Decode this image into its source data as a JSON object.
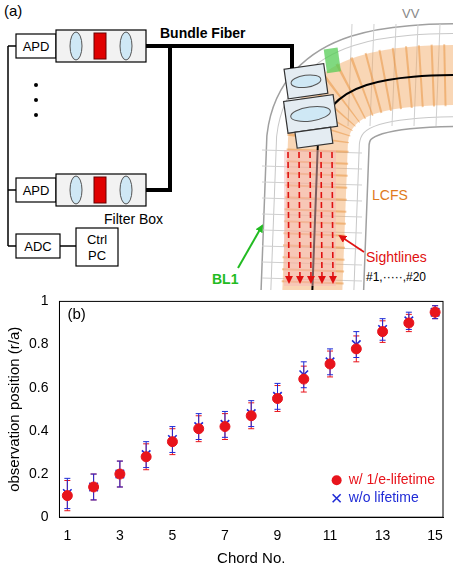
{
  "diagram": {
    "label": "(a)",
    "apd": "APD",
    "bundle_fiber": "Bundle Fiber",
    "filter_box": "Filter Box",
    "adc": "ADC",
    "ctrl_pc": [
      "Ctrl",
      "PC"
    ],
    "vv": "VV",
    "lcfs": "LCFS",
    "sightlines": "Sightlines",
    "sightline_numbers": "#1,·····,#20",
    "bl1": "BL1"
  },
  "chart_data": {
    "type": "scatter",
    "annotations": [
      "(b)"
    ],
    "x_label": "Chord No.",
    "y_label": "observation position (r/a)",
    "x": [
      1,
      2,
      3,
      4,
      5,
      6,
      7,
      8,
      9,
      10,
      11,
      12,
      13,
      14,
      15
    ],
    "xlim": [
      0.7,
      15.3
    ],
    "xticks": [
      1,
      3,
      5,
      7,
      9,
      11,
      13,
      15
    ],
    "ylim": [
      0,
      1
    ],
    "yticks": [
      0,
      0.2,
      0.4,
      0.6,
      0.8,
      1
    ],
    "grid": false,
    "legend": "bottom-right",
    "series": [
      {
        "name": "w/ 1/e-lifetime",
        "color": "#e8141c",
        "marker": "circle",
        "values": [
          0.1,
          0.14,
          0.2,
          0.28,
          0.35,
          0.41,
          0.42,
          0.47,
          0.55,
          0.64,
          0.71,
          0.78,
          0.86,
          0.9,
          0.95
        ],
        "error": [
          0.07,
          0.06,
          0.06,
          0.06,
          0.06,
          0.06,
          0.06,
          0.06,
          0.06,
          0.06,
          0.06,
          0.06,
          0.05,
          0.04,
          0.03
        ]
      },
      {
        "name": "w/o lifetime",
        "color": "#1f2bd6",
        "marker": "x",
        "values": [
          0.11,
          0.14,
          0.2,
          0.29,
          0.36,
          0.42,
          0.43,
          0.48,
          0.56,
          0.66,
          0.72,
          0.8,
          0.87,
          0.91,
          0.95
        ],
        "error": [
          0.07,
          0.06,
          0.06,
          0.06,
          0.06,
          0.06,
          0.06,
          0.06,
          0.06,
          0.06,
          0.06,
          0.06,
          0.05,
          0.04,
          0.03
        ]
      }
    ]
  }
}
